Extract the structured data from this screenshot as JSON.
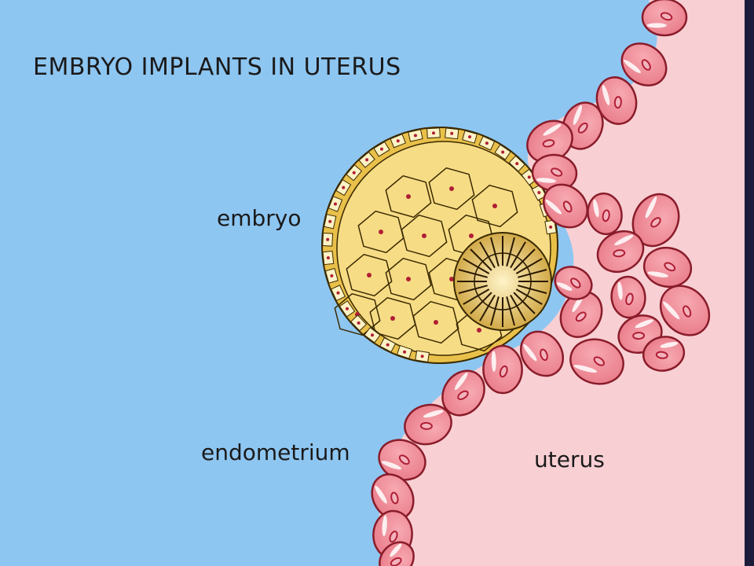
{
  "diagram": {
    "title": "EMBRYO IMPLANTS IN UTERUS",
    "labels": {
      "embryo": "embryo",
      "endometrium": "endometrium",
      "uterus": "uterus"
    }
  },
  "colors": {
    "fluid": "#8ec6f2",
    "uterus_tissue": "#f8d0d4",
    "cell_fill": "#ef8a96",
    "cell_outline": "#8a1c2a",
    "nucleus": "#b01e34",
    "embryo_yellow": "#f3d56a",
    "embryo_light": "#fdf2c4",
    "border": "#1c1c3a"
  }
}
